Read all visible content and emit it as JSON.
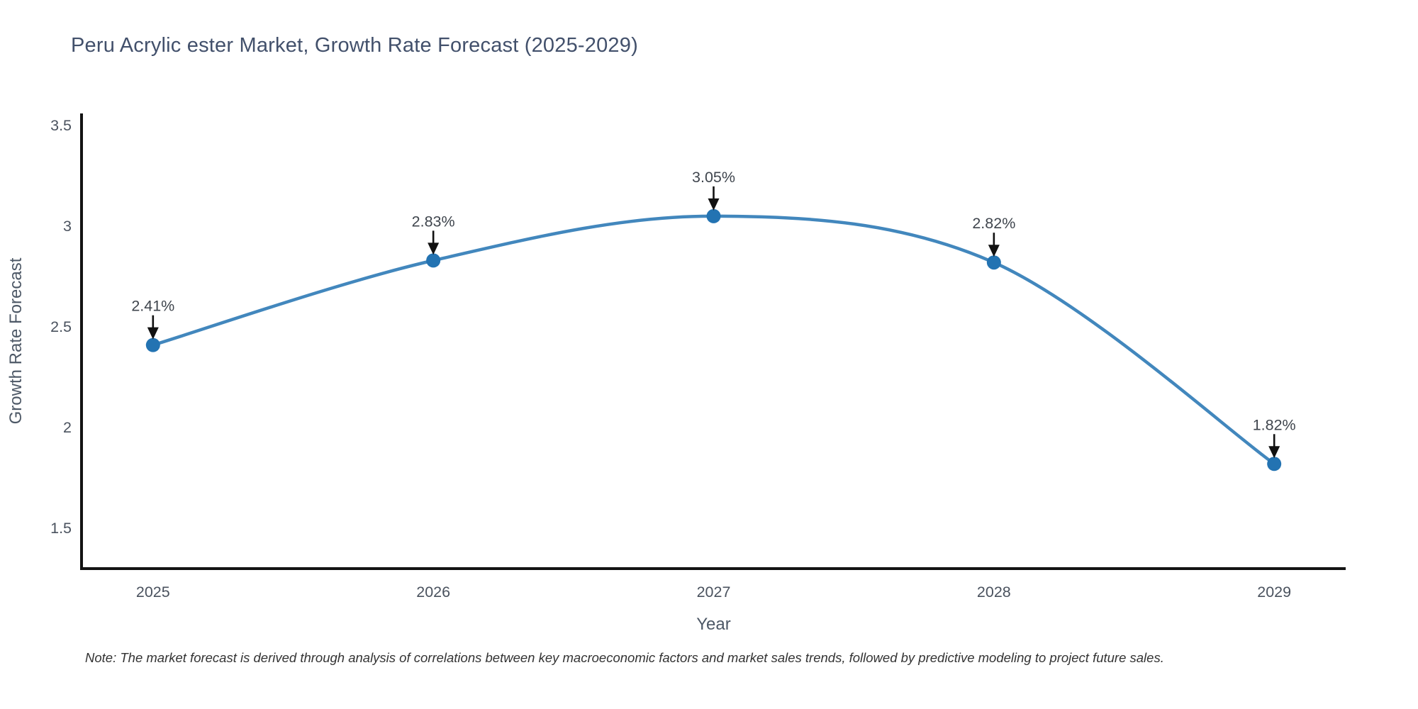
{
  "title": "Peru Acrylic ester Market, Growth Rate Forecast (2025-2029)",
  "note": "Note: The market forecast is derived through analysis of correlations between key macroeconomic factors and market sales trends, followed by predictive modeling to project future sales.",
  "chart_data": {
    "type": "line",
    "title": "Peru Acrylic ester Market, Growth Rate Forecast (2025-2029)",
    "x": [
      2025,
      2026,
      2027,
      2028,
      2029
    ],
    "values": [
      2.41,
      2.83,
      3.05,
      2.82,
      1.82
    ],
    "point_labels": [
      "2.41%",
      "2.83%",
      "3.05%",
      "2.82%",
      "1.82%"
    ],
    "xlabel": "Year",
    "ylabel": "Growth Rate Forecast",
    "xtick_labels": [
      "2025",
      "2026",
      "2027",
      "2028",
      "2029"
    ],
    "yticks": [
      1.5,
      2,
      2.5,
      3,
      3.5
    ],
    "ytick_labels": [
      "1.5",
      "2",
      "2.5",
      "3",
      "3.5"
    ],
    "xlim": [
      2024.745,
      2029.255
    ],
    "ylim": [
      1.3,
      3.56
    ],
    "grid": false,
    "legend": "none",
    "smooth": true,
    "line_color": "#4287bd",
    "marker_color": "#2373b2",
    "axis_color": "#131313",
    "arrow_color": "#111111"
  }
}
